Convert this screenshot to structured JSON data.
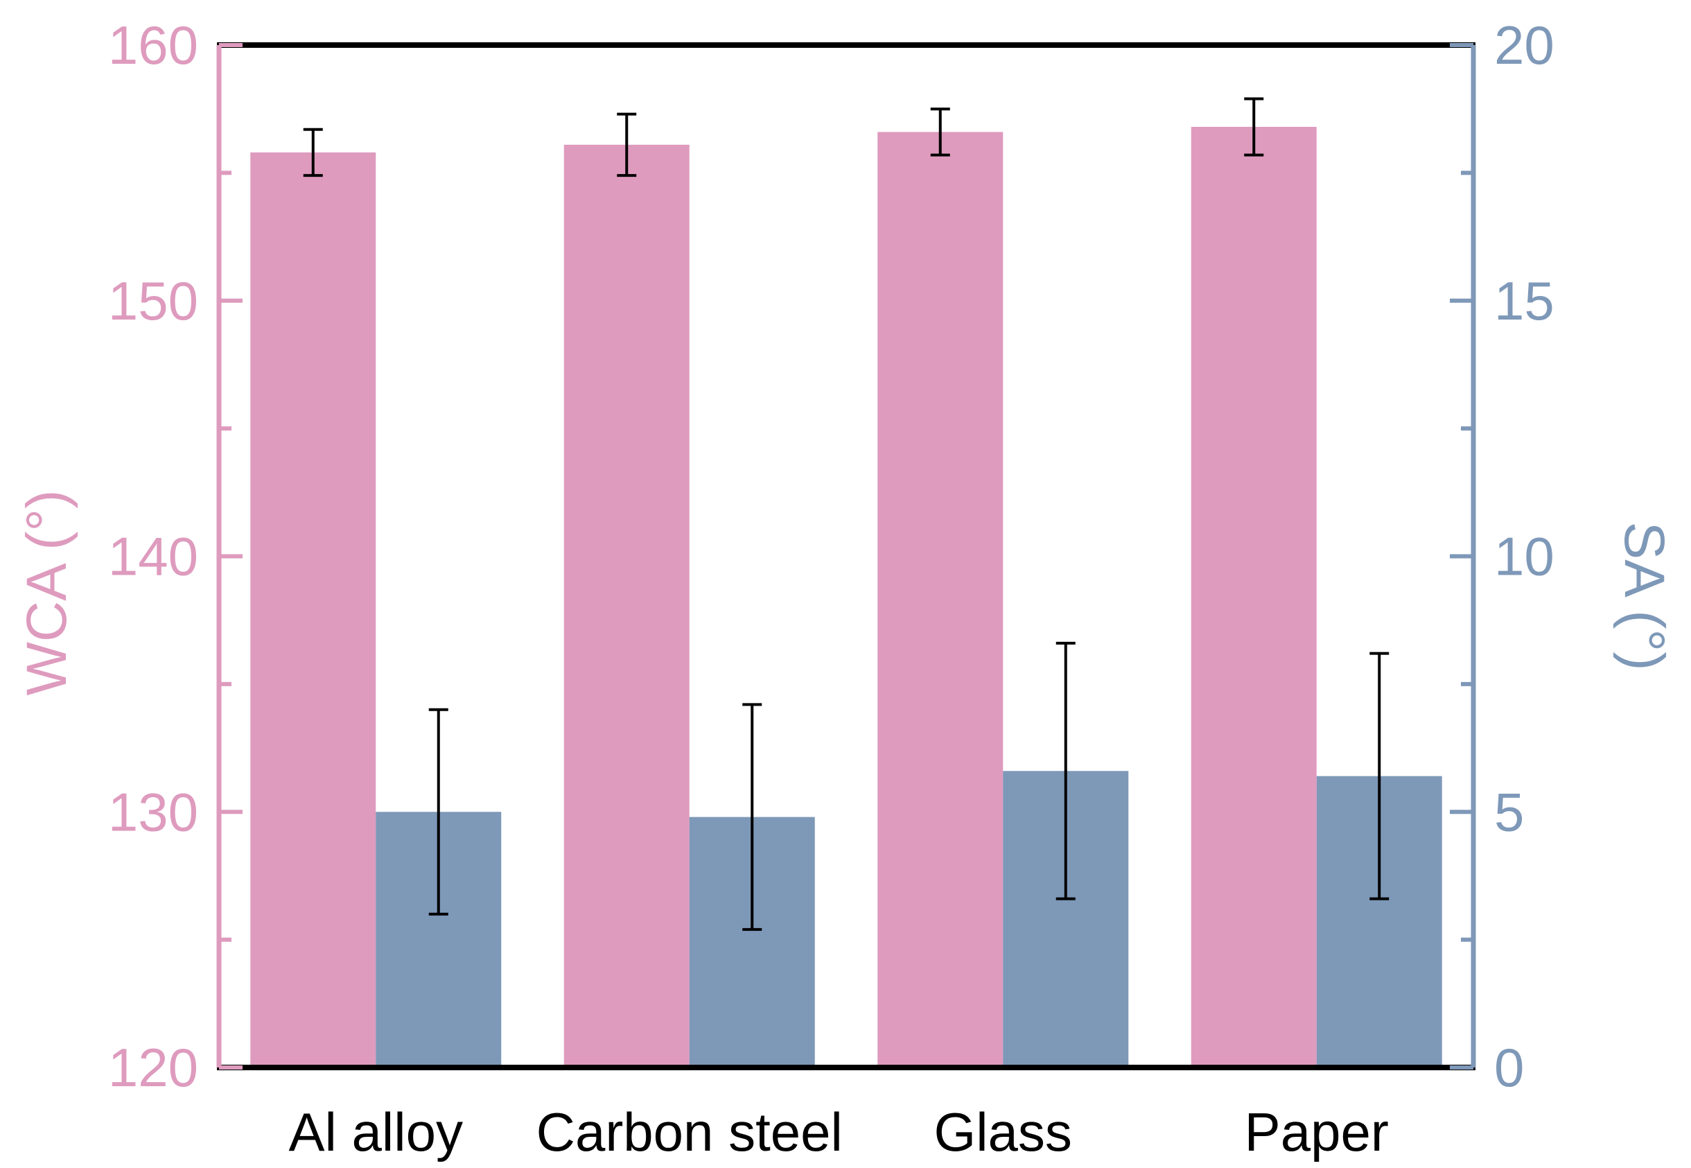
{
  "colors": {
    "wca": "#de9bbe",
    "sa": "#7e98b8",
    "left_axis": "#de9bbe",
    "right_axis": "#7e98b8",
    "frame": "#000000",
    "error_bar": "#000000"
  },
  "chart_data": {
    "type": "bar",
    "categories": [
      "Al alloy",
      "Carbon steel",
      "Glass",
      "Paper"
    ],
    "series": [
      {
        "axis": "left",
        "values": [
          155.8,
          156.1,
          156.6,
          156.8
        ],
        "errors": [
          0.9,
          1.2,
          0.9,
          1.1
        ]
      },
      {
        "axis": "right",
        "values": [
          5.0,
          4.9,
          5.8,
          5.7
        ],
        "errors": [
          2.0,
          2.2,
          2.5,
          2.4
        ]
      }
    ],
    "ylabel_left": "WCA (°)",
    "ylabel_right": "SA (°)",
    "ylim_left": [
      120,
      160
    ],
    "ylim_right": [
      0,
      20
    ],
    "yticks_left": [
      "120",
      "130",
      "140",
      "150",
      "160"
    ],
    "yticks_right": [
      "0",
      "5",
      "10",
      "15",
      "20"
    ],
    "grid": false,
    "legend": "none"
  }
}
